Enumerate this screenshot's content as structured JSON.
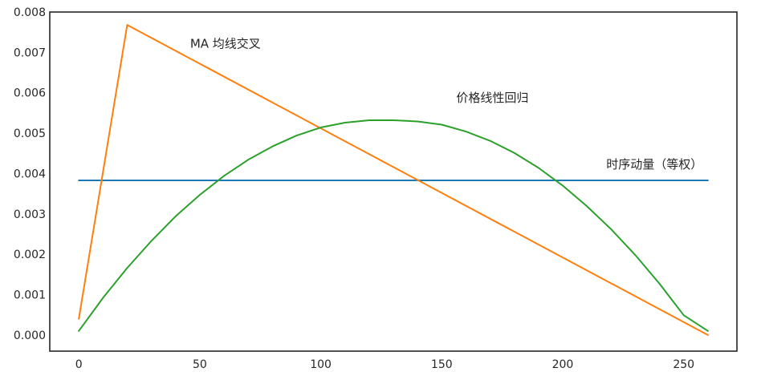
{
  "chart_data": {
    "type": "line",
    "title": "",
    "xlabel": "",
    "ylabel": "",
    "xlim": [
      -12,
      272
    ],
    "ylim": [
      -0.0004,
      0.008
    ],
    "xticks": [
      0,
      50,
      100,
      150,
      200,
      250
    ],
    "yticks": [
      0.0,
      0.001,
      0.002,
      0.003,
      0.004,
      0.005,
      0.006,
      0.007,
      0.008
    ],
    "ytick_labels": [
      "0.000",
      "0.001",
      "0.002",
      "0.003",
      "0.004",
      "0.005",
      "0.006",
      "0.007",
      "0.008"
    ],
    "grid": false,
    "legend": "none",
    "series": [
      {
        "name": "时序动量（等权）",
        "color": "#1f77b4",
        "x": [
          0,
          260
        ],
        "y": [
          0.00383,
          0.00383
        ]
      },
      {
        "name": "MA 均线交叉",
        "color": "#ff7f0e",
        "x": [
          0,
          20,
          260
        ],
        "y": [
          0.0004,
          0.00768,
          0.0
        ]
      },
      {
        "name": "价格线性回归",
        "color": "#2ca02c",
        "x": [
          0,
          10,
          20,
          30,
          40,
          50,
          60,
          70,
          80,
          90,
          100,
          110,
          120,
          130,
          140,
          150,
          160,
          170,
          180,
          190,
          200,
          210,
          220,
          230,
          240,
          250,
          260
        ],
        "y": [
          0.0001,
          0.00092,
          0.00166,
          0.00233,
          0.00294,
          0.00347,
          0.00394,
          0.00434,
          0.00467,
          0.00494,
          0.00514,
          0.00526,
          0.00532,
          0.00532,
          0.00529,
          0.00521,
          0.00504,
          0.00481,
          0.00451,
          0.00414,
          0.0037,
          0.00319,
          0.00262,
          0.00198,
          0.00127,
          0.00049,
          0.0001
        ]
      }
    ],
    "annotations": [
      {
        "text": "MA 均线交叉",
        "x": 46,
        "y": 0.00712
      },
      {
        "text": "价格线性回归",
        "x": 156,
        "y": 0.00578
      },
      {
        "text": "时序动量（等权）",
        "x": 218,
        "y": 0.00413
      }
    ]
  }
}
